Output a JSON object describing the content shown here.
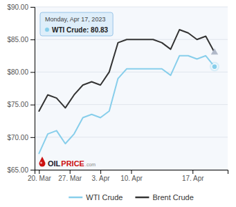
{
  "chart_data": {
    "type": "line",
    "x": [
      0,
      1,
      2,
      3,
      4,
      5,
      6,
      7,
      8,
      9,
      10,
      11,
      12,
      13,
      14,
      15,
      16,
      17,
      18,
      19,
      20
    ],
    "series": [
      {
        "name": "WTI Crude",
        "color": "#87CEEB",
        "values": [
          67.5,
          70.5,
          71.0,
          69.0,
          70.5,
          73.0,
          73.5,
          73.0,
          74.0,
          79.0,
          80.5,
          80.5,
          80.5,
          80.5,
          80.5,
          79.5,
          82.5,
          82.5,
          82.0,
          82.5,
          80.83
        ]
      },
      {
        "name": "Brent Crude",
        "color": "#333333",
        "values": [
          74.0,
          76.5,
          76.0,
          74.5,
          76.5,
          78.0,
          78.5,
          78.0,
          80.0,
          84.5,
          85.0,
          85.0,
          85.0,
          85.0,
          84.5,
          83.5,
          86.5,
          86.0,
          85.0,
          85.5,
          83.0
        ]
      }
    ],
    "xlim": [
      -0.5,
      21.5
    ],
    "xticks": [
      {
        "value": 0,
        "label": "20. Mar"
      },
      {
        "value": 3.5,
        "label": "27. Mar"
      },
      {
        "value": 7,
        "label": "3. Apr"
      },
      {
        "value": 10.5,
        "label": "10. Apr"
      },
      {
        "value": 17.5,
        "label": "17. Apr"
      }
    ],
    "ylim": [
      65.0,
      90.0
    ],
    "yticks": [
      {
        "value": 65.0,
        "label": "$65.00"
      },
      {
        "value": 70.0,
        "label": "$70.00"
      },
      {
        "value": 75.0,
        "label": "$75.00"
      },
      {
        "value": 80.0,
        "label": "$80.00"
      },
      {
        "value": 85.0,
        "label": "$85.00"
      },
      {
        "value": 90.0,
        "label": "$90.00"
      }
    ],
    "grid": true,
    "legend": "bottom",
    "annotations": [
      "Monday, Apr 17, 2023",
      "WTI Crude: 80.83",
      "OIL",
      "PRICE",
      ".com"
    ]
  }
}
